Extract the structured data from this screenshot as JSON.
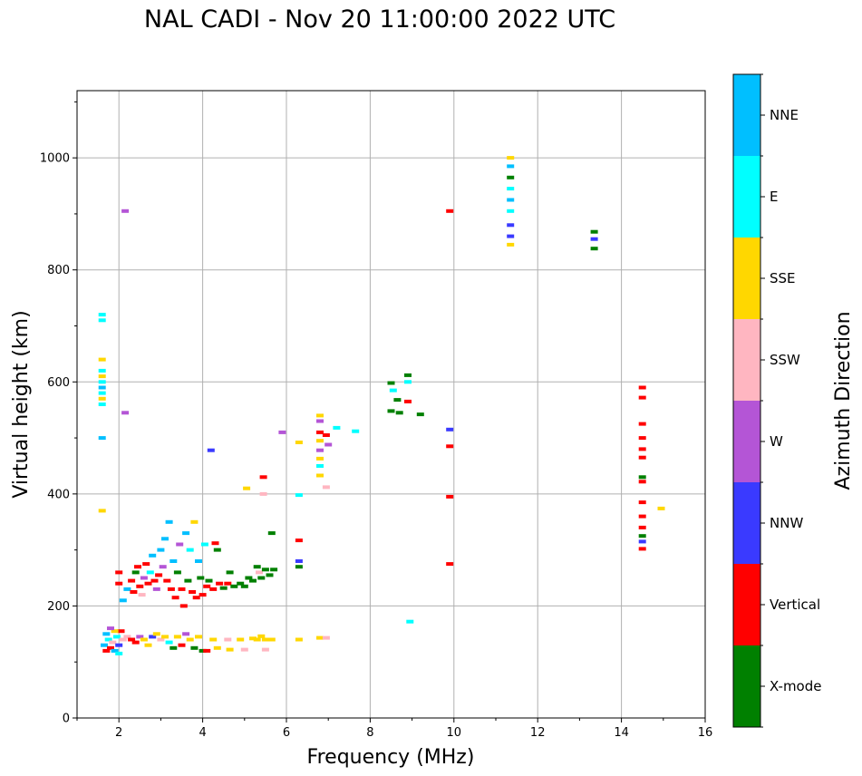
{
  "chart_data": {
    "type": "scatter",
    "title": "NAL CADI - Nov 20 11:00:00 2022 UTC",
    "xlabel": "Frequency (MHz)",
    "ylabel": "Virtual height (km)",
    "xlim": [
      1,
      16
    ],
    "ylim": [
      0,
      1120
    ],
    "grid": true,
    "xticks": [
      2,
      4,
      6,
      8,
      10,
      12,
      14,
      16
    ],
    "yticks": [
      0,
      200,
      400,
      600,
      800,
      1000
    ],
    "colorbar": {
      "title": "Azimuth Direction",
      "categories": [
        {
          "name": "X-mode",
          "color": "#008000"
        },
        {
          "name": "Vertical",
          "color": "#ff0000"
        },
        {
          "name": "NNW",
          "color": "#3a3aff"
        },
        {
          "name": "W",
          "color": "#b455d6"
        },
        {
          "name": "SSW",
          "color": "#ffb6c1"
        },
        {
          "name": "SSE",
          "color": "#ffd700"
        },
        {
          "name": "E",
          "color": "#00ffff"
        },
        {
          "name": "NNE",
          "color": "#00bfff"
        }
      ]
    },
    "points": [
      [
        1.6,
        720,
        "E"
      ],
      [
        1.6,
        710,
        "E"
      ],
      [
        1.6,
        640,
        "SSE"
      ],
      [
        1.6,
        620,
        "E"
      ],
      [
        1.6,
        610,
        "SSE"
      ],
      [
        1.6,
        600,
        "E"
      ],
      [
        1.6,
        590,
        "NNE"
      ],
      [
        1.6,
        580,
        "E"
      ],
      [
        1.6,
        570,
        "SSE"
      ],
      [
        1.6,
        560,
        "E"
      ],
      [
        1.6,
        500,
        "NNE"
      ],
      [
        1.6,
        370,
        "SSE"
      ],
      [
        2.15,
        905,
        "W"
      ],
      [
        2.15,
        545,
        "W"
      ],
      [
        1.7,
        150,
        "NNE"
      ],
      [
        1.75,
        140,
        "E"
      ],
      [
        1.65,
        130,
        "NNE"
      ],
      [
        1.8,
        125,
        "Vertical"
      ],
      [
        1.85,
        135,
        "SSW"
      ],
      [
        1.9,
        120,
        "NNE"
      ],
      [
        1.95,
        145,
        "E"
      ],
      [
        2.0,
        130,
        "NNW"
      ],
      [
        2.05,
        155,
        "Vertical"
      ],
      [
        2.1,
        140,
        "SSW"
      ],
      [
        1.7,
        120,
        "Vertical"
      ],
      [
        1.9,
        155,
        "SSE"
      ],
      [
        2.0,
        115,
        "E"
      ],
      [
        1.8,
        160,
        "W"
      ],
      [
        2.2,
        145,
        "SSW"
      ],
      [
        2.3,
        140,
        "Vertical"
      ],
      [
        2.4,
        135,
        "Vertical"
      ],
      [
        2.5,
        145,
        "W"
      ],
      [
        2.6,
        140,
        "SSE"
      ],
      [
        2.7,
        130,
        "SSE"
      ],
      [
        2.8,
        145,
        "NNW"
      ],
      [
        2.9,
        150,
        "SSE"
      ],
      [
        3.0,
        140,
        "SSW"
      ],
      [
        3.1,
        145,
        "SSE"
      ],
      [
        3.2,
        135,
        "E"
      ],
      [
        3.3,
        125,
        "X-mode"
      ],
      [
        3.4,
        145,
        "SSE"
      ],
      [
        3.5,
        130,
        "Vertical"
      ],
      [
        3.6,
        150,
        "W"
      ],
      [
        3.7,
        140,
        "SSE"
      ],
      [
        3.8,
        125,
        "X-mode"
      ],
      [
        3.9,
        145,
        "SSE"
      ],
      [
        4.0,
        120,
        "X-mode"
      ],
      [
        4.1,
        120,
        "Vertical"
      ],
      [
        4.25,
        140,
        "SSE"
      ],
      [
        4.35,
        125,
        "SSE"
      ],
      [
        4.6,
        140,
        "SSW"
      ],
      [
        4.65,
        122,
        "SSE"
      ],
      [
        4.9,
        140,
        "SSE"
      ],
      [
        5.0,
        122,
        "SSW"
      ],
      [
        5.2,
        142,
        "SSE"
      ],
      [
        5.3,
        140,
        "SSE"
      ],
      [
        5.4,
        146,
        "SSE"
      ],
      [
        5.5,
        140,
        "SSE"
      ],
      [
        5.5,
        122,
        "SSW"
      ],
      [
        5.65,
        140,
        "SSE"
      ],
      [
        6.3,
        140,
        "SSE"
      ],
      [
        6.8,
        143,
        "SSE"
      ],
      [
        6.95,
        143,
        "SSW"
      ],
      [
        2.0,
        260,
        "Vertical"
      ],
      [
        2.0,
        240,
        "Vertical"
      ],
      [
        2.1,
        210,
        "NNE"
      ],
      [
        2.2,
        230,
        "NNE"
      ],
      [
        2.3,
        245,
        "Vertical"
      ],
      [
        2.35,
        225,
        "Vertical"
      ],
      [
        2.4,
        260,
        "X-mode"
      ],
      [
        2.45,
        270,
        "Vertical"
      ],
      [
        2.5,
        235,
        "Vertical"
      ],
      [
        2.55,
        220,
        "SSW"
      ],
      [
        2.6,
        250,
        "W"
      ],
      [
        2.65,
        275,
        "Vertical"
      ],
      [
        2.7,
        240,
        "Vertical"
      ],
      [
        2.75,
        260,
        "E"
      ],
      [
        2.8,
        290,
        "NNE"
      ],
      [
        2.85,
        245,
        "Vertical"
      ],
      [
        2.9,
        230,
        "W"
      ],
      [
        2.95,
        255,
        "Vertical"
      ],
      [
        3.0,
        300,
        "NNE"
      ],
      [
        3.05,
        270,
        "W"
      ],
      [
        3.1,
        320,
        "NNE"
      ],
      [
        3.15,
        245,
        "Vertical"
      ],
      [
        3.2,
        350,
        "NNE"
      ],
      [
        3.25,
        230,
        "Vertical"
      ],
      [
        3.3,
        280,
        "NNE"
      ],
      [
        3.35,
        215,
        "Vertical"
      ],
      [
        3.4,
        260,
        "X-mode"
      ],
      [
        3.45,
        310,
        "W"
      ],
      [
        3.5,
        230,
        "Vertical"
      ],
      [
        3.55,
        200,
        "Vertical"
      ],
      [
        3.6,
        330,
        "NNE"
      ],
      [
        3.65,
        245,
        "X-mode"
      ],
      [
        3.7,
        300,
        "E"
      ],
      [
        3.75,
        225,
        "Vertical"
      ],
      [
        3.8,
        350,
        "SSE"
      ],
      [
        3.85,
        215,
        "Vertical"
      ],
      [
        3.9,
        280,
        "NNE"
      ],
      [
        3.95,
        250,
        "X-mode"
      ],
      [
        4.0,
        220,
        "Vertical"
      ],
      [
        4.05,
        310,
        "E"
      ],
      [
        4.1,
        235,
        "Vertical"
      ],
      [
        4.15,
        245,
        "X-mode"
      ],
      [
        4.2,
        478,
        "NNW"
      ],
      [
        4.25,
        230,
        "Vertical"
      ],
      [
        4.3,
        312,
        "Vertical"
      ],
      [
        4.35,
        300,
        "X-mode"
      ],
      [
        4.4,
        240,
        "Vertical"
      ],
      [
        4.5,
        232,
        "X-mode"
      ],
      [
        4.6,
        240,
        "Vertical"
      ],
      [
        4.65,
        260,
        "X-mode"
      ],
      [
        4.75,
        235,
        "X-mode"
      ],
      [
        4.9,
        240,
        "X-mode"
      ],
      [
        5.0,
        235,
        "X-mode"
      ],
      [
        5.05,
        410,
        "SSE"
      ],
      [
        5.1,
        250,
        "X-mode"
      ],
      [
        5.2,
        245,
        "X-mode"
      ],
      [
        5.3,
        270,
        "X-mode"
      ],
      [
        5.35,
        260,
        "SSW"
      ],
      [
        5.4,
        250,
        "X-mode"
      ],
      [
        5.45,
        400,
        "SSW"
      ],
      [
        5.45,
        430,
        "Vertical"
      ],
      [
        5.5,
        265,
        "X-mode"
      ],
      [
        5.6,
        255,
        "X-mode"
      ],
      [
        5.7,
        265,
        "X-mode"
      ],
      [
        5.65,
        330,
        "X-mode"
      ],
      [
        5.9,
        510,
        "W"
      ],
      [
        6.3,
        317,
        "Vertical"
      ],
      [
        6.3,
        280,
        "NNW"
      ],
      [
        6.3,
        270,
        "X-mode"
      ],
      [
        6.3,
        398,
        "E"
      ],
      [
        6.3,
        492,
        "SSE"
      ],
      [
        6.8,
        540,
        "SSE"
      ],
      [
        6.8,
        530,
        "W"
      ],
      [
        6.8,
        510,
        "Vertical"
      ],
      [
        6.8,
        495,
        "SSE"
      ],
      [
        6.8,
        478,
        "W"
      ],
      [
        6.8,
        463,
        "SSE"
      ],
      [
        6.8,
        450,
        "E"
      ],
      [
        6.8,
        433,
        "SSE"
      ],
      [
        6.95,
        505,
        "Vertical"
      ],
      [
        7.0,
        488,
        "W"
      ],
      [
        7.2,
        518,
        "E"
      ],
      [
        7.65,
        512,
        "E"
      ],
      [
        6.95,
        412,
        "SSW"
      ],
      [
        8.5,
        598,
        "X-mode"
      ],
      [
        8.55,
        585,
        "E"
      ],
      [
        8.65,
        568,
        "X-mode"
      ],
      [
        8.5,
        548,
        "X-mode"
      ],
      [
        8.7,
        545,
        "X-mode"
      ],
      [
        8.9,
        612,
        "X-mode"
      ],
      [
        8.9,
        600,
        "E"
      ],
      [
        8.9,
        565,
        "Vertical"
      ],
      [
        9.2,
        542,
        "X-mode"
      ],
      [
        8.95,
        172,
        "E"
      ],
      [
        9.9,
        905,
        "Vertical"
      ],
      [
        9.9,
        515,
        "NNW"
      ],
      [
        9.9,
        485,
        "Vertical"
      ],
      [
        9.9,
        395,
        "Vertical"
      ],
      [
        9.9,
        275,
        "Vertical"
      ],
      [
        11.35,
        1000,
        "SSE"
      ],
      [
        11.35,
        985,
        "NNE"
      ],
      [
        11.35,
        965,
        "X-mode"
      ],
      [
        11.35,
        945,
        "E"
      ],
      [
        11.35,
        925,
        "NNE"
      ],
      [
        11.35,
        905,
        "E"
      ],
      [
        11.35,
        880,
        "NNW"
      ],
      [
        11.35,
        860,
        "NNW"
      ],
      [
        11.35,
        845,
        "SSE"
      ],
      [
        13.35,
        868,
        "X-mode"
      ],
      [
        13.35,
        855,
        "NNW"
      ],
      [
        13.35,
        838,
        "X-mode"
      ],
      [
        14.5,
        590,
        "Vertical"
      ],
      [
        14.5,
        572,
        "Vertical"
      ],
      [
        14.5,
        525,
        "Vertical"
      ],
      [
        14.5,
        500,
        "Vertical"
      ],
      [
        14.5,
        480,
        "Vertical"
      ],
      [
        14.5,
        465,
        "Vertical"
      ],
      [
        14.5,
        430,
        "X-mode"
      ],
      [
        14.5,
        422,
        "Vertical"
      ],
      [
        14.5,
        385,
        "Vertical"
      ],
      [
        14.5,
        360,
        "Vertical"
      ],
      [
        14.5,
        340,
        "Vertical"
      ],
      [
        14.5,
        325,
        "X-mode"
      ],
      [
        14.5,
        315,
        "NNW"
      ],
      [
        14.5,
        302,
        "Vertical"
      ],
      [
        14.95,
        374,
        "SSE"
      ]
    ]
  }
}
